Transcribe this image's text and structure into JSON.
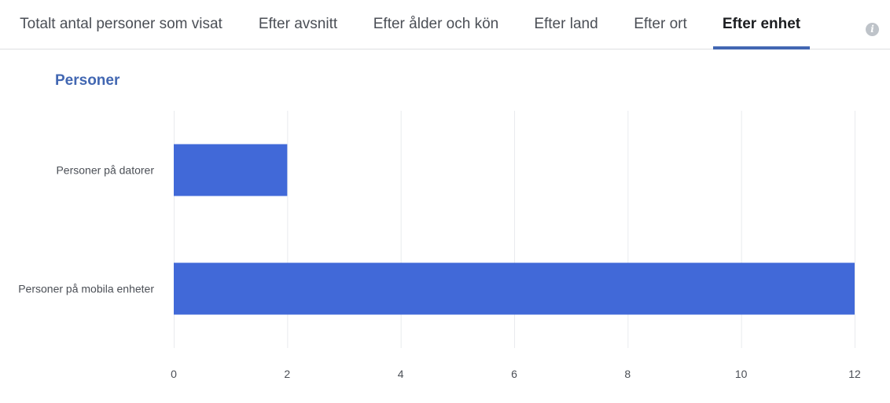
{
  "tabs": [
    {
      "label": "Totalt antal personer som visat",
      "active": false
    },
    {
      "label": "Efter avsnitt",
      "active": false
    },
    {
      "label": "Efter ålder och kön",
      "active": false
    },
    {
      "label": "Efter land",
      "active": false
    },
    {
      "label": "Efter ort",
      "active": false
    },
    {
      "label": "Efter enhet",
      "active": true
    }
  ],
  "info_icon": "info-icon",
  "colors": {
    "bar": "#4169d8",
    "accent": "#4267b2",
    "grid": "#e9ebee"
  },
  "chart_data": {
    "type": "bar",
    "orientation": "horizontal",
    "title": "Personer",
    "categories": [
      "Personer på datorer",
      "Personer på mobila enheter"
    ],
    "values": [
      2,
      12
    ],
    "xlim": [
      0,
      12
    ],
    "xticks": [
      0,
      2,
      4,
      6,
      8,
      10,
      12
    ],
    "xticklabels": [
      "0",
      "2",
      "4",
      "6",
      "8",
      "10",
      "12"
    ],
    "grid": true,
    "legend": "none"
  }
}
